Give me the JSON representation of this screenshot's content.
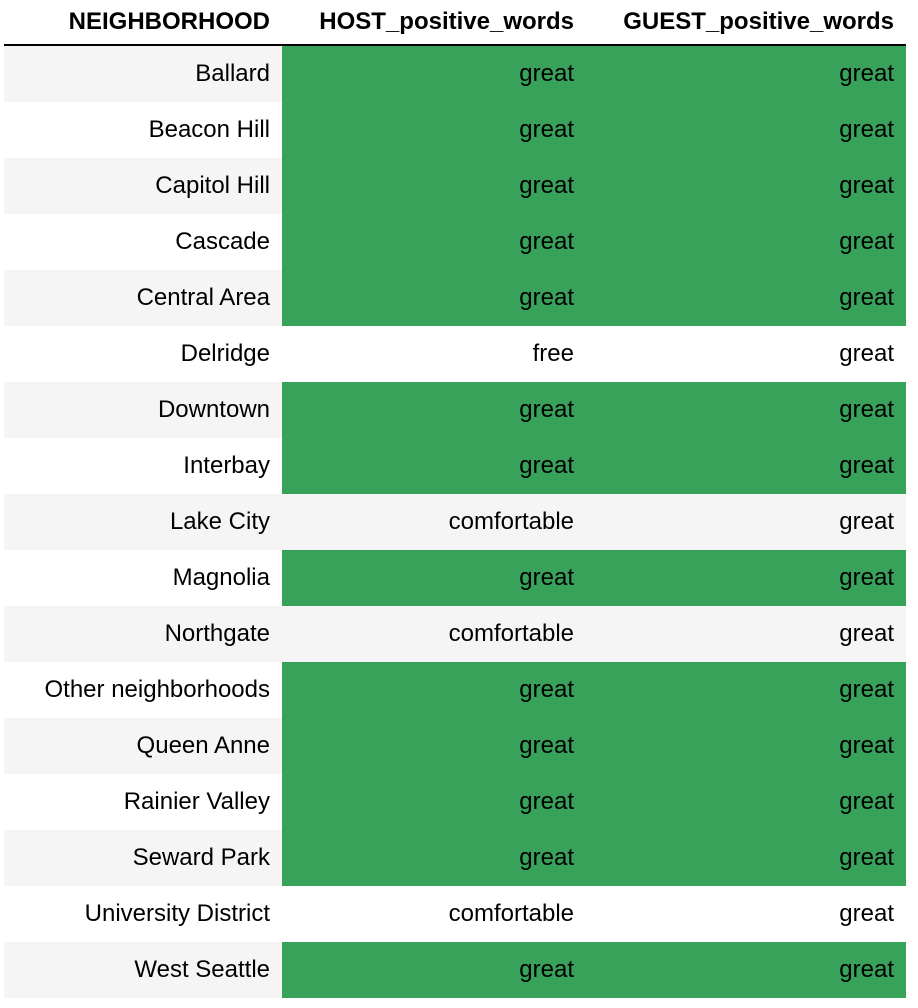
{
  "columns": {
    "neighborhood": "NEIGHBORHOOD",
    "host": "HOST_positive_words",
    "guest": "GUEST_positive_words"
  },
  "highlight_color": "#38a15a",
  "stripe_color": "#f5f5f5",
  "rows": [
    {
      "neighborhood": "Ballard",
      "host": "great",
      "guest": "great",
      "highlight": true
    },
    {
      "neighborhood": "Beacon Hill",
      "host": "great",
      "guest": "great",
      "highlight": true
    },
    {
      "neighborhood": "Capitol Hill",
      "host": "great",
      "guest": "great",
      "highlight": true
    },
    {
      "neighborhood": "Cascade",
      "host": "great",
      "guest": "great",
      "highlight": true
    },
    {
      "neighborhood": "Central Area",
      "host": "great",
      "guest": "great",
      "highlight": true
    },
    {
      "neighborhood": "Delridge",
      "host": "free",
      "guest": "great",
      "highlight": false
    },
    {
      "neighborhood": "Downtown",
      "host": "great",
      "guest": "great",
      "highlight": true
    },
    {
      "neighborhood": "Interbay",
      "host": "great",
      "guest": "great",
      "highlight": true
    },
    {
      "neighborhood": "Lake City",
      "host": "comfortable",
      "guest": "great",
      "highlight": false
    },
    {
      "neighborhood": "Magnolia",
      "host": "great",
      "guest": "great",
      "highlight": true
    },
    {
      "neighborhood": "Northgate",
      "host": "comfortable",
      "guest": "great",
      "highlight": false
    },
    {
      "neighborhood": "Other neighborhoods",
      "host": "great",
      "guest": "great",
      "highlight": true
    },
    {
      "neighborhood": "Queen Anne",
      "host": "great",
      "guest": "great",
      "highlight": true
    },
    {
      "neighborhood": "Rainier Valley",
      "host": "great",
      "guest": "great",
      "highlight": true
    },
    {
      "neighborhood": "Seward Park",
      "host": "great",
      "guest": "great",
      "highlight": true
    },
    {
      "neighborhood": "University District",
      "host": "comfortable",
      "guest": "great",
      "highlight": false
    },
    {
      "neighborhood": "West Seattle",
      "host": "great",
      "guest": "great",
      "highlight": true
    }
  ]
}
